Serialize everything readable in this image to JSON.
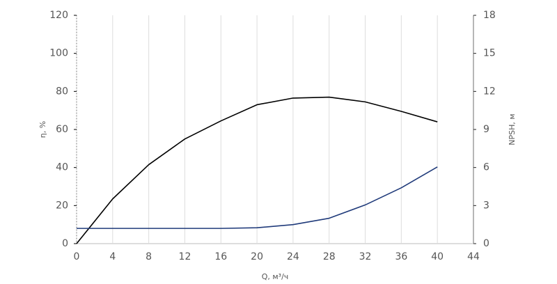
{
  "chart_data": {
    "type": "line",
    "x_label": "Q, м³/ч",
    "y_label": "η, %",
    "y2_label": "NPSH, м",
    "x": [
      0,
      4,
      8,
      12,
      16,
      20,
      24,
      28,
      32,
      36,
      40
    ],
    "series": [
      {
        "name": "η",
        "color": "#000000",
        "values": [
          0,
          23.5,
          41.5,
          55,
          64.5,
          73,
          76.5,
          77,
          74.5,
          69.5,
          64
        ]
      },
      {
        "name": "NPSH",
        "color": "#1f3a7a",
        "axis": "y2",
        "values": [
          1.2,
          1.2,
          1.2,
          1.2,
          1.2,
          1.25,
          1.5,
          2.0,
          3.05,
          4.4,
          6.05
        ]
      }
    ],
    "xlim": [
      0,
      44
    ],
    "xticks": [
      0,
      4,
      8,
      12,
      16,
      20,
      24,
      28,
      32,
      36,
      40,
      44
    ],
    "ylim": [
      0,
      120
    ],
    "yticks": [
      0,
      20,
      40,
      60,
      80,
      100,
      120
    ],
    "y2lim": [
      0,
      18
    ],
    "y2ticks": [
      0,
      3,
      6,
      9,
      12,
      15,
      18
    ],
    "grid": "x"
  }
}
